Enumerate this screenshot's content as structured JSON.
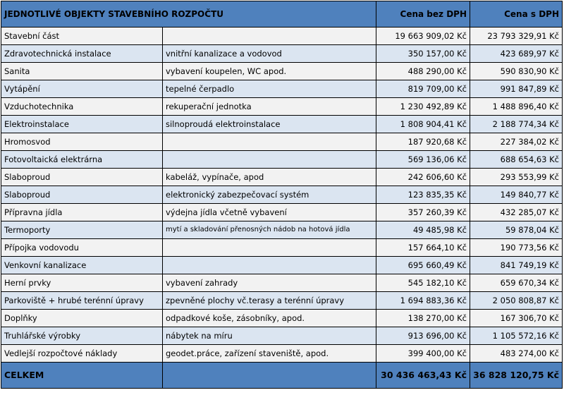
{
  "header": {
    "title": "JEDNOTLIVÉ OBJEKTY STAVEBNÍHO ROZPOČTU",
    "col_net": "Cena bez DPH",
    "col_gross": "Cena s DPH"
  },
  "rows": [
    {
      "name": "Stavební část",
      "desc": "",
      "net": "19 663 909,02 Kč",
      "gross": "23 793 329,91 Kč"
    },
    {
      "name": "Zdravotechnická instalace",
      "desc": "vnitřní kanalizace a vodovod",
      "net": "350 157,00 Kč",
      "gross": "423 689,97 Kč"
    },
    {
      "name": "Sanita",
      "desc": "vybavení koupelen, WC apod.",
      "net": "488 290,00 Kč",
      "gross": "590 830,90 Kč"
    },
    {
      "name": "Vytápění",
      "desc": "tepelné čerpadlo",
      "net": "819 709,00 Kč",
      "gross": "991 847,89 Kč"
    },
    {
      "name": "Vzduchotechnika",
      "desc": "rekuperační jednotka",
      "net": "1 230 492,89 Kč",
      "gross": "1 488 896,40 Kč"
    },
    {
      "name": "Elektroinstalace",
      "desc": "silnoproudá elektroinstalace",
      "net": "1 808 904,41 Kč",
      "gross": "2 188 774,34 Kč"
    },
    {
      "name": "Hromosvod",
      "desc": "",
      "net": "187 920,68 Kč",
      "gross": "227 384,02 Kč"
    },
    {
      "name": "Fotovoltaická elektrárna",
      "desc": "",
      "net": "569 136,06 Kč",
      "gross": "688 654,63 Kč"
    },
    {
      "name": "Slaboproud",
      "desc": "kabeláž, vypínače, apod",
      "net": "242 606,60 Kč",
      "gross": "293 553,99 Kč"
    },
    {
      "name": "Slaboproud",
      "desc": "elektronický zabezpečovací systém",
      "net": "123 835,35 Kč",
      "gross": "149 840,77 Kč"
    },
    {
      "name": "Přípravna jídla",
      "desc": "výdejna jídla včetně vybavení",
      "net": "357 260,39 Kč",
      "gross": "432 285,07 Kč"
    },
    {
      "name": "Termoporty",
      "desc": "mytí a skladování přenosných nádob na hotová jídla",
      "net": "49 485,98 Kč",
      "gross": "59 878,04 Kč"
    },
    {
      "name": "Přípojka vodovodu",
      "desc": "",
      "net": "157 664,10 Kč",
      "gross": "190 773,56 Kč"
    },
    {
      "name": "Venkovní kanalizace",
      "desc": "",
      "net": "695 660,49 Kč",
      "gross": "841 749,19 Kč"
    },
    {
      "name": "Herní prvky",
      "desc": "vybavení zahrady",
      "net": "545 182,10 Kč",
      "gross": "659 670,34 Kč"
    },
    {
      "name": "Parkoviště + hrubé terénní úpravy",
      "desc": "zpevněné plochy vč.terasy a terénní úpravy",
      "net": "1 694 883,36 Kč",
      "gross": "2 050 808,87 Kč"
    },
    {
      "name": "Doplňky",
      "desc": "odpadkové koše, zásobníky, apod.",
      "net": "138 270,00 Kč",
      "gross": "167 306,70 Kč"
    },
    {
      "name": "Truhlářské výrobky",
      "desc": "nábytek na míru",
      "net": "913 696,00 Kč",
      "gross": "1 105 572,16 Kč"
    },
    {
      "name": "Vedlejší rozpočtové náklady",
      "desc": "geodet.práce, zařízení staveniště, apod.",
      "net": "399 400,00 Kč",
      "gross": "483 274,00 Kč"
    }
  ],
  "total": {
    "label": "CELKEM",
    "net": "30 436 463,43 Kč",
    "gross": "36 828 120,75 Kč"
  },
  "colors": {
    "header_bg": "#4f81bd",
    "row_light": "#f2f2f2",
    "row_blue": "#dbe5f1"
  }
}
